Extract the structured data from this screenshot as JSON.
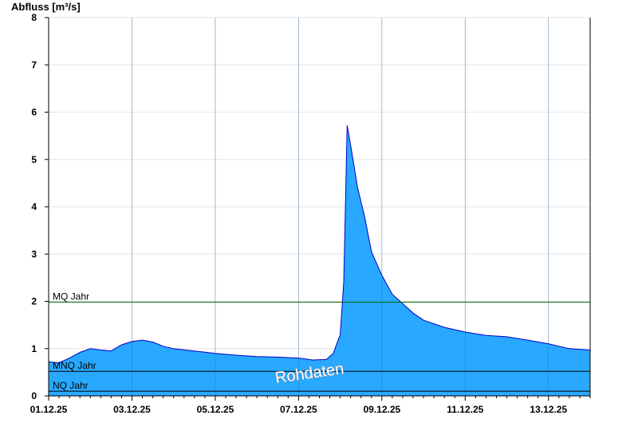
{
  "chart_data": {
    "type": "area",
    "ylabel": "Abfluss [m³/s]",
    "ylim": [
      0,
      8
    ],
    "yticks": [
      0,
      1,
      2,
      3,
      4,
      5,
      6,
      7,
      8
    ],
    "xlim": [
      "01.12.25 00:00",
      "13.12.25 24:00"
    ],
    "xtick_labels": [
      "01.12.25",
      "03.12.25",
      "05.12.25",
      "07.12.25",
      "09.12.25",
      "11.12.25",
      "13.12.25"
    ],
    "grid": true,
    "watermark": "Rohdaten",
    "series": [
      {
        "values_unit": "m³/s",
        "color": "#29a8ff",
        "line_color": "#0000cc",
        "x": [
          "01.12.25 00:00",
          "01.12.25 06:00",
          "01.12.25 12:00",
          "01.12.25 18:00",
          "02.12.25 00:00",
          "02.12.25 06:00",
          "02.12.25 12:00",
          "02.12.25 18:00",
          "03.12.25 00:00",
          "03.12.25 06:00",
          "03.12.25 12:00",
          "03.12.25 18:00",
          "04.12.25 00:00",
          "04.12.25 12:00",
          "05.12.25 00:00",
          "05.12.25 12:00",
          "06.12.25 00:00",
          "06.12.25 12:00",
          "07.12.25 00:00",
          "07.12.25 08:00",
          "07.12.25 16:00",
          "07.12.25 20:00",
          "08.12.25 00:00",
          "08.12.25 02:00",
          "08.12.25 03:00",
          "08.12.25 04:00",
          "08.12.25 06:00",
          "08.12.25 10:00",
          "08.12.25 14:00",
          "08.12.25 18:00",
          "09.12.25 00:00",
          "09.12.25 06:00",
          "09.12.25 12:00",
          "09.12.25 18:00",
          "10.12.25 00:00",
          "10.12.25 12:00",
          "11.12.25 00:00",
          "11.12.25 12:00",
          "12.12.25 00:00",
          "12.12.25 12:00",
          "13.12.25 00:00",
          "13.12.25 12:00",
          "14.12.25 00:00"
        ],
        "values": [
          0.72,
          0.7,
          0.8,
          0.92,
          1.0,
          0.97,
          0.95,
          1.08,
          1.15,
          1.18,
          1.14,
          1.05,
          1.0,
          0.95,
          0.9,
          0.86,
          0.83,
          0.82,
          0.8,
          0.76,
          0.77,
          0.9,
          1.3,
          2.4,
          4.0,
          5.72,
          5.3,
          4.4,
          3.8,
          3.05,
          2.55,
          2.15,
          1.95,
          1.75,
          1.6,
          1.45,
          1.35,
          1.28,
          1.25,
          1.18,
          1.1,
          1.0,
          0.97
        ]
      }
    ],
    "reference_lines": [
      {
        "name": "MQ Jahr",
        "value": 1.98,
        "color": "#006600"
      },
      {
        "name": "MNQ Jahr",
        "value": 0.52,
        "color": "#000000"
      },
      {
        "name": "NQ Jahr",
        "value": 0.1,
        "color": "#000000"
      }
    ]
  }
}
